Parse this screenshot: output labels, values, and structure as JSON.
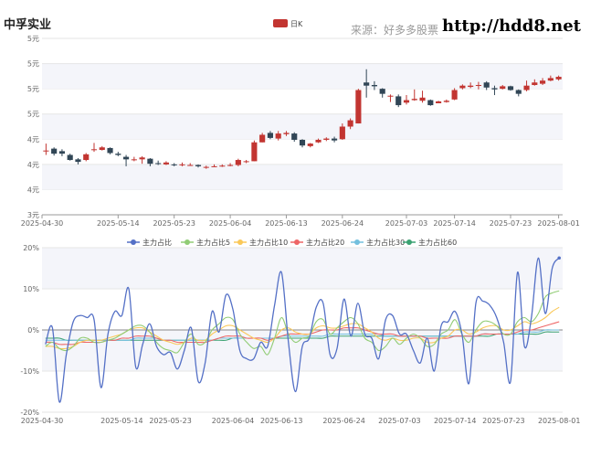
{
  "header": {
    "stock_name": "中孚实业",
    "source": "来源：好多多股票",
    "site": "http://hdd8.net"
  },
  "chart_data": [
    {
      "type": "candlestick",
      "legend": [
        {
          "name": "日K",
          "color": "#c23531"
        }
      ],
      "x_tick_labels": [
        "2025-04-30",
        "2025-05-14",
        "2025-05-23",
        "2025-06-04",
        "2025-06-13",
        "2025-06-24",
        "2025-07-03",
        "2025-07-14",
        "2025-07-23",
        "2025-08-01"
      ],
      "y_tick_labels": [
        "3元",
        "4元",
        "4元",
        "4元",
        "5元",
        "5元",
        "5元",
        "5元"
      ],
      "up_color": "#c23531",
      "down_color": "#314656",
      "ylim": [
        3.0,
        5.8
      ],
      "candles": [
        {
          "o": 4.01,
          "c": 4.02,
          "h": 4.13,
          "l": 3.95
        },
        {
          "o": 4.05,
          "c": 3.97,
          "h": 4.07,
          "l": 3.94
        },
        {
          "o": 4.01,
          "c": 3.97,
          "h": 4.04,
          "l": 3.93
        },
        {
          "o": 3.95,
          "c": 3.87,
          "h": 3.97,
          "l": 3.86
        },
        {
          "o": 3.88,
          "c": 3.84,
          "h": 3.9,
          "l": 3.8
        },
        {
          "o": 3.87,
          "c": 3.96,
          "h": 3.98,
          "l": 3.85
        },
        {
          "o": 4.03,
          "c": 4.04,
          "h": 4.14,
          "l": 4.0
        },
        {
          "o": 4.03,
          "c": 4.07,
          "h": 4.09,
          "l": 4.02
        },
        {
          "o": 4.06,
          "c": 3.98,
          "h": 4.07,
          "l": 3.96
        },
        {
          "o": 3.97,
          "c": 3.95,
          "h": 4.0,
          "l": 3.93
        },
        {
          "o": 3.92,
          "c": 3.88,
          "h": 3.95,
          "l": 3.77
        },
        {
          "o": 3.88,
          "c": 3.88,
          "h": 3.92,
          "l": 3.85
        },
        {
          "o": 3.88,
          "c": 3.91,
          "h": 3.93,
          "l": 3.81
        },
        {
          "o": 3.89,
          "c": 3.81,
          "h": 3.9,
          "l": 3.77
        },
        {
          "o": 3.82,
          "c": 3.81,
          "h": 3.86,
          "l": 3.79
        },
        {
          "o": 3.8,
          "c": 3.83,
          "h": 3.85,
          "l": 3.79
        },
        {
          "o": 3.8,
          "c": 3.79,
          "h": 3.82,
          "l": 3.77
        },
        {
          "o": 3.8,
          "c": 3.8,
          "h": 3.83,
          "l": 3.77
        },
        {
          "o": 3.79,
          "c": 3.79,
          "h": 3.82,
          "l": 3.78
        },
        {
          "o": 3.79,
          "c": 3.77,
          "h": 3.8,
          "l": 3.75
        },
        {
          "o": 3.75,
          "c": 3.76,
          "h": 3.78,
          "l": 3.73
        },
        {
          "o": 3.77,
          "c": 3.77,
          "h": 3.8,
          "l": 3.76
        },
        {
          "o": 3.77,
          "c": 3.78,
          "h": 3.8,
          "l": 3.76
        },
        {
          "o": 3.78,
          "c": 3.79,
          "h": 3.82,
          "l": 3.77
        },
        {
          "o": 3.79,
          "c": 3.87,
          "h": 3.89,
          "l": 3.77
        },
        {
          "o": 3.85,
          "c": 3.85,
          "h": 3.87,
          "l": 3.82
        },
        {
          "o": 3.85,
          "c": 4.15,
          "h": 4.18,
          "l": 3.85
        },
        {
          "o": 4.15,
          "c": 4.27,
          "h": 4.3,
          "l": 4.15
        },
        {
          "o": 4.3,
          "c": 4.22,
          "h": 4.33,
          "l": 4.2
        },
        {
          "o": 4.21,
          "c": 4.29,
          "h": 4.33,
          "l": 4.18
        },
        {
          "o": 4.28,
          "c": 4.3,
          "h": 4.33,
          "l": 4.25
        },
        {
          "o": 4.29,
          "c": 4.19,
          "h": 4.31,
          "l": 4.16
        },
        {
          "o": 4.19,
          "c": 4.1,
          "h": 4.2,
          "l": 4.07
        },
        {
          "o": 4.09,
          "c": 4.13,
          "h": 4.14,
          "l": 4.07
        },
        {
          "o": 4.15,
          "c": 4.19,
          "h": 4.21,
          "l": 4.14
        },
        {
          "o": 4.19,
          "c": 4.21,
          "h": 4.23,
          "l": 4.17
        },
        {
          "o": 4.21,
          "c": 4.18,
          "h": 4.24,
          "l": 4.15
        },
        {
          "o": 4.2,
          "c": 4.4,
          "h": 4.45,
          "l": 4.19
        },
        {
          "o": 4.4,
          "c": 4.5,
          "h": 4.53,
          "l": 4.36
        },
        {
          "o": 4.45,
          "c": 4.98,
          "h": 5.0,
          "l": 4.45
        },
        {
          "o": 5.1,
          "c": 5.05,
          "h": 5.31,
          "l": 4.86
        },
        {
          "o": 5.06,
          "c": 5.04,
          "h": 5.12,
          "l": 4.98
        },
        {
          "o": 5.0,
          "c": 4.92,
          "h": 5.01,
          "l": 4.86
        },
        {
          "o": 4.89,
          "c": 4.89,
          "h": 4.91,
          "l": 4.79
        },
        {
          "o": 4.88,
          "c": 4.74,
          "h": 4.91,
          "l": 4.71
        },
        {
          "o": 4.78,
          "c": 4.82,
          "h": 4.9,
          "l": 4.75
        },
        {
          "o": 4.82,
          "c": 4.84,
          "h": 4.99,
          "l": 4.81
        },
        {
          "o": 4.81,
          "c": 4.86,
          "h": 4.97,
          "l": 4.78
        },
        {
          "o": 4.82,
          "c": 4.74,
          "h": 4.83,
          "l": 4.73
        },
        {
          "o": 4.77,
          "c": 4.8,
          "h": 4.81,
          "l": 4.77
        },
        {
          "o": 4.79,
          "c": 4.81,
          "h": 4.83,
          "l": 4.78
        },
        {
          "o": 4.83,
          "c": 4.98,
          "h": 5.01,
          "l": 4.82
        },
        {
          "o": 5.01,
          "c": 5.05,
          "h": 5.07,
          "l": 4.99
        },
        {
          "o": 5.03,
          "c": 5.05,
          "h": 5.1,
          "l": 5.01
        },
        {
          "o": 5.06,
          "c": 5.06,
          "h": 5.11,
          "l": 4.99
        },
        {
          "o": 5.1,
          "c": 5.02,
          "h": 5.12,
          "l": 4.98
        },
        {
          "o": 5.01,
          "c": 4.99,
          "h": 5.05,
          "l": 4.9
        },
        {
          "o": 5.0,
          "c": 5.04,
          "h": 5.06,
          "l": 4.99
        },
        {
          "o": 5.04,
          "c": 4.98,
          "h": 5.05,
          "l": 4.97
        },
        {
          "o": 4.98,
          "c": 4.92,
          "h": 4.99,
          "l": 4.88
        },
        {
          "o": 4.98,
          "c": 5.05,
          "h": 5.13,
          "l": 4.96
        },
        {
          "o": 5.06,
          "c": 5.1,
          "h": 5.15,
          "l": 5.05
        },
        {
          "o": 5.08,
          "c": 5.13,
          "h": 5.17,
          "l": 5.06
        },
        {
          "o": 5.13,
          "c": 5.17,
          "h": 5.21,
          "l": 5.12
        },
        {
          "o": 5.15,
          "c": 5.19,
          "h": 5.21,
          "l": 5.13
        }
      ]
    },
    {
      "type": "line",
      "x_tick_labels": [
        "2025-04-30",
        "2025-05-14",
        "2025-05-23",
        "2025-06-04",
        "2025-06-13",
        "2025-06-24",
        "2025-07-03",
        "2025-07-14",
        "2025-07-23",
        "2025-08-01"
      ],
      "y_tick_labels": [
        "20%",
        "10%",
        "0%",
        "-10%",
        "-20%"
      ],
      "ylim": [
        -20,
        20
      ],
      "series": [
        {
          "name": "主力占比",
          "color": "#5470c6",
          "values": [
            -3.5,
            0.5,
            -17.5,
            -6,
            2,
            3.5,
            3,
            2.5,
            -14,
            -1,
            4.5,
            3.5,
            10,
            -9,
            -3.5,
            1.5,
            -4,
            -6,
            -5.5,
            -9.5,
            -5,
            0.5,
            -12.5,
            -8,
            4.5,
            -0.5,
            8.5,
            5,
            -5,
            -7,
            -7,
            -3,
            -4,
            6,
            14,
            -3,
            -15,
            -4,
            -2,
            5.5,
            6.5,
            -6,
            -4.5,
            7.5,
            -1.5,
            6.5,
            -1,
            -2,
            -7,
            2.5,
            3.5,
            -1,
            -1,
            -5,
            -8,
            -2,
            -10,
            1,
            2,
            4.5,
            -1,
            -13,
            6.5,
            7,
            6,
            3,
            -3,
            -12.5,
            14,
            -4,
            3,
            17.5,
            4,
            15,
            17.5
          ]
        },
        {
          "name": "主力占比5",
          "color": "#91cc75",
          "values": [
            -4,
            -3,
            -4.5,
            -5,
            -4,
            -2,
            -2,
            -3,
            -3,
            -2.5,
            -2,
            -1,
            0,
            1,
            1,
            -0.5,
            -3,
            -4.5,
            -5,
            -5.5,
            -3,
            -1,
            -3.5,
            -3,
            0,
            1.5,
            3,
            2.5,
            -1,
            -3,
            -4.5,
            -4,
            -6,
            -2,
            3,
            -1,
            -3,
            -2,
            -1.5,
            2,
            2.5,
            -1,
            0.5,
            2,
            3,
            1.5,
            -2,
            -3,
            -5,
            -4,
            -2,
            -3.5,
            -2,
            -1,
            -2,
            -4,
            -3.5,
            -1,
            0,
            2.5,
            -1,
            -3,
            0,
            2,
            2,
            1,
            -1,
            -1,
            2,
            3,
            2,
            4,
            8,
            9,
            9.5
          ]
        },
        {
          "name": "主力占比10",
          "color": "#fac858",
          "values": [
            -4,
            -4,
            -4.5,
            -4.5,
            -4,
            -3,
            -2.5,
            -2.5,
            -2.5,
            -2,
            -1.5,
            -1,
            0,
            0.5,
            0.5,
            -0.5,
            -1.5,
            -2.5,
            -3,
            -3.5,
            -3,
            -2,
            -2.5,
            -2.5,
            -1,
            0,
            1,
            1,
            0,
            -1,
            -2,
            -2.5,
            -3,
            -2,
            0,
            0.5,
            -0.5,
            -1,
            -1,
            0.5,
            1,
            0.5,
            0.5,
            1,
            1.5,
            1.5,
            0.5,
            -0.5,
            -2,
            -2.5,
            -2,
            -2.5,
            -2.5,
            -2,
            -2,
            -3,
            -3,
            -2,
            -1.5,
            0,
            0,
            -1,
            -0.5,
            0.5,
            1,
            1,
            0,
            0,
            1,
            2,
            1.5,
            2,
            3,
            4.5,
            5.5
          ]
        },
        {
          "name": "主力占比20",
          "color": "#ee6666",
          "values": [
            -3,
            -3,
            -3.5,
            -3.5,
            -3.5,
            -3,
            -3,
            -3,
            -3,
            -2.5,
            -2.5,
            -2,
            -2,
            -1.5,
            -1.5,
            -1.5,
            -2,
            -2.5,
            -2.5,
            -3,
            -3,
            -3,
            -3,
            -3,
            -2.5,
            -2,
            -1.5,
            -1.5,
            -1.5,
            -2,
            -2,
            -2,
            -2.5,
            -2,
            -1.5,
            -1,
            -1,
            -1,
            -1,
            -0.5,
            0,
            0,
            0,
            0.5,
            0.5,
            0.5,
            0,
            -0.5,
            -1,
            -1,
            -1,
            -1.5,
            -1.5,
            -1.5,
            -1.5,
            -2,
            -2,
            -2,
            -2,
            -1.5,
            -1.5,
            -1.5,
            -1.5,
            -1,
            -1,
            -1,
            -1,
            -1,
            -0.5,
            0,
            0,
            0.5,
            1,
            1.5,
            2
          ]
        },
        {
          "name": "主力占比30",
          "color": "#73c0de",
          "values": [
            -2.5,
            -2.5,
            -2.5,
            -2.5,
            -2.5,
            -2.5,
            -2.5,
            -2.5,
            -2.5,
            -2.5,
            -2.5,
            -2.5,
            -2.5,
            -2,
            -2,
            -2,
            -2,
            -2.5,
            -2.5,
            -2.5,
            -2.5,
            -2.5,
            -2.5,
            -2.5,
            -2.5,
            -2,
            -2,
            -2,
            -2,
            -2,
            -2,
            -2,
            -2,
            -2,
            -1.5,
            -1.5,
            -1.5,
            -1.5,
            -1.5,
            -1.5,
            -1.5,
            -1,
            -1,
            -1,
            -1,
            -1,
            -1,
            -1,
            -1,
            -1.5,
            -1.5,
            -1.5,
            -1.5,
            -1.5,
            -1.5,
            -1.5,
            -1.5,
            -1.5,
            -1.5,
            -1.5,
            -1.5,
            -1.5,
            -1.5,
            -1,
            -1,
            -1,
            -1,
            -1,
            -1,
            -0.5,
            -0.5,
            -0.5,
            0,
            0,
            0
          ]
        },
        {
          "name": "主力占比60",
          "color": "#3ba272",
          "values": [
            -2,
            -2,
            -2,
            -2.5,
            -2.5,
            -2.5,
            -2.5,
            -2.5,
            -2.5,
            -2.5,
            -2.5,
            -2.5,
            -2.5,
            -2.5,
            -2.5,
            -2.5,
            -2.5,
            -2.5,
            -2.5,
            -2.5,
            -2.5,
            -2.5,
            -2.5,
            -2.5,
            -2.5,
            -2.5,
            -2.5,
            -2,
            -2,
            -2,
            -2,
            -2,
            -2,
            -2,
            -2,
            -2,
            -2,
            -2,
            -2,
            -2,
            -2,
            -1.5,
            -1.5,
            -1.5,
            -1.5,
            -1.5,
            -1.5,
            -1.5,
            -1.5,
            -1.5,
            -1.5,
            -1.5,
            -1.5,
            -1.5,
            -1.5,
            -1.5,
            -1.5,
            -1.5,
            -1.5,
            -1.5,
            -1.5,
            -1.5,
            -1.5,
            -1.5,
            -1.5,
            -1,
            -1,
            -1,
            -1,
            -1,
            -1,
            -1,
            -0.5,
            -0.5,
            -0.5
          ]
        }
      ]
    }
  ]
}
